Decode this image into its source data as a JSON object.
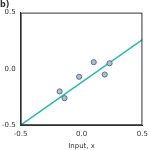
{
  "chart_data": {
    "type": "scatter",
    "title": "b)",
    "x_label": "Input, x",
    "xlim": [
      -0.5,
      0.5
    ],
    "xticks": [
      -0.5,
      {
        "value": 0,
        "label": "0.0"
      },
      0.5
    ],
    "ylim": [
      -0.5,
      0.5
    ],
    "yticks": [
      -0.5,
      {
        "value": 0,
        "label": "0.0"
      },
      0.5
    ],
    "grid": false,
    "series": [
      {
        "type": "scatter",
        "color": "#a9bfd9",
        "marker": "circle",
        "x": [
          -0.18,
          -0.14,
          -0.02,
          0.1,
          0.19,
          0.23
        ],
        "values": [
          -0.2,
          -0.26,
          -0.07,
          0.06,
          -0.05,
          0.05
        ]
      },
      {
        "type": "line",
        "color": "#2bb8b8",
        "line_style": "solid",
        "x": [
          -0.5,
          0.5
        ],
        "values": [
          -0.5,
          0.26
        ]
      }
    ]
  }
}
